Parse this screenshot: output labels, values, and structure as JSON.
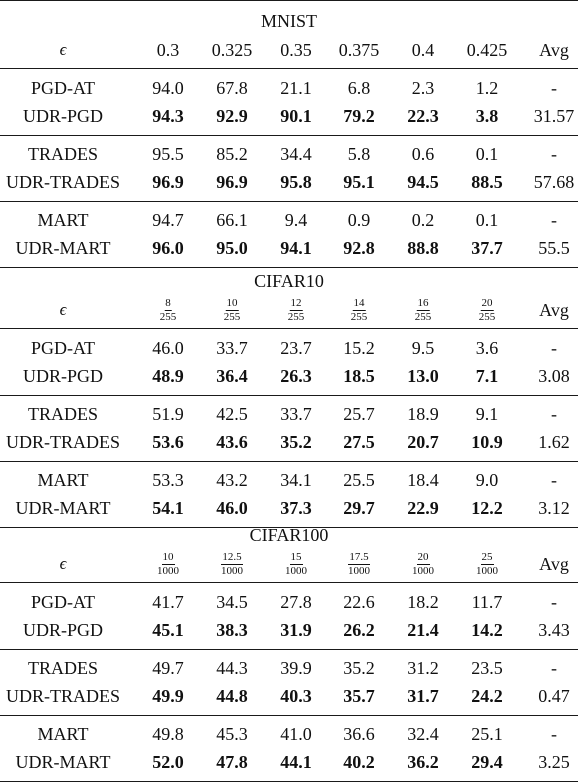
{
  "datasets": [
    {
      "name": "MNIST",
      "epsilon_symbol": "ϵ",
      "epsilon_format": "plain",
      "epsilons": [
        "0.3",
        "0.325",
        "0.35",
        "0.375",
        "0.4",
        "0.425"
      ],
      "avg_header": "Avg",
      "groups": [
        {
          "rows": [
            {
              "method": "PGD-AT",
              "bold": false,
              "values": [
                "94.0",
                "67.8",
                "21.1",
                "6.8",
                "2.3",
                "1.2"
              ],
              "avg": "-"
            },
            {
              "method": "UDR-PGD",
              "bold": true,
              "values": [
                "94.3",
                "92.9",
                "90.1",
                "79.2",
                "22.3",
                "3.8"
              ],
              "avg": "31.57"
            }
          ]
        },
        {
          "rows": [
            {
              "method": "TRADES",
              "bold": false,
              "values": [
                "95.5",
                "85.2",
                "34.4",
                "5.8",
                "0.6",
                "0.1"
              ],
              "avg": "-"
            },
            {
              "method": "UDR-TRADES",
              "bold": true,
              "values": [
                "96.9",
                "96.9",
                "95.8",
                "95.1",
                "94.5",
                "88.5"
              ],
              "avg": "57.68"
            }
          ]
        },
        {
          "rows": [
            {
              "method": "MART",
              "bold": false,
              "values": [
                "94.7",
                "66.1",
                "9.4",
                "0.9",
                "0.2",
                "0.1"
              ],
              "avg": "-"
            },
            {
              "method": "UDR-MART",
              "bold": true,
              "values": [
                "96.0",
                "95.0",
                "94.1",
                "92.8",
                "88.8",
                "37.7"
              ],
              "avg": "55.5"
            }
          ]
        }
      ]
    },
    {
      "name": "CIFAR10",
      "epsilon_symbol": "ϵ",
      "epsilon_format": "fraction",
      "epsilons": [
        {
          "num": "8",
          "den": "255"
        },
        {
          "num": "10",
          "den": "255"
        },
        {
          "num": "12",
          "den": "255"
        },
        {
          "num": "14",
          "den": "255"
        },
        {
          "num": "16",
          "den": "255"
        },
        {
          "num": "20",
          "den": "255"
        }
      ],
      "avg_header": "Avg",
      "groups": [
        {
          "rows": [
            {
              "method": "PGD-AT",
              "bold": false,
              "values": [
                "46.0",
                "33.7",
                "23.7",
                "15.2",
                "9.5",
                "3.6"
              ],
              "avg": "-"
            },
            {
              "method": "UDR-PGD",
              "bold": true,
              "values": [
                "48.9",
                "36.4",
                "26.3",
                "18.5",
                "13.0",
                "7.1"
              ],
              "avg": "3.08"
            }
          ]
        },
        {
          "rows": [
            {
              "method": "TRADES",
              "bold": false,
              "values": [
                "51.9",
                "42.5",
                "33.7",
                "25.7",
                "18.9",
                "9.1"
              ],
              "avg": "-"
            },
            {
              "method": "UDR-TRADES",
              "bold": true,
              "values": [
                "53.6",
                "43.6",
                "35.2",
                "27.5",
                "20.7",
                "10.9"
              ],
              "avg": "1.62"
            }
          ]
        },
        {
          "rows": [
            {
              "method": "MART",
              "bold": false,
              "values": [
                "53.3",
                "43.2",
                "34.1",
                "25.5",
                "18.4",
                "9.0"
              ],
              "avg": "-"
            },
            {
              "method": "UDR-MART",
              "bold": true,
              "values": [
                "54.1",
                "46.0",
                "37.3",
                "29.7",
                "22.9",
                "12.2"
              ],
              "avg": "3.12"
            }
          ]
        }
      ]
    },
    {
      "name": "CIFAR100",
      "epsilon_symbol": "ϵ",
      "epsilon_format": "fraction",
      "epsilons": [
        {
          "num": "10",
          "den": "1000"
        },
        {
          "num": "12.5",
          "den": "1000"
        },
        {
          "num": "15",
          "den": "1000"
        },
        {
          "num": "17.5",
          "den": "1000"
        },
        {
          "num": "20",
          "den": "1000"
        },
        {
          "num": "25",
          "den": "1000"
        }
      ],
      "avg_header": "Avg",
      "groups": [
        {
          "rows": [
            {
              "method": "PGD-AT",
              "bold": false,
              "values": [
                "41.7",
                "34.5",
                "27.8",
                "22.6",
                "18.2",
                "11.7"
              ],
              "avg": "-"
            },
            {
              "method": "UDR-PGD",
              "bold": true,
              "values": [
                "45.1",
                "38.3",
                "31.9",
                "26.2",
                "21.4",
                "14.2"
              ],
              "avg": "3.43"
            }
          ]
        },
        {
          "rows": [
            {
              "method": "TRADES",
              "bold": false,
              "values": [
                "49.7",
                "44.3",
                "39.9",
                "35.2",
                "31.2",
                "23.5"
              ],
              "avg": "-"
            },
            {
              "method": "UDR-TRADES",
              "bold": true,
              "values": [
                "49.9",
                "44.8",
                "40.3",
                "35.7",
                "31.7",
                "24.2"
              ],
              "avg": "0.47"
            }
          ]
        },
        {
          "rows": [
            {
              "method": "MART",
              "bold": false,
              "values": [
                "49.8",
                "45.3",
                "41.0",
                "36.6",
                "32.4",
                "25.1"
              ],
              "avg": "-"
            },
            {
              "method": "UDR-MART",
              "bold": true,
              "values": [
                "52.0",
                "47.8",
                "44.1",
                "40.2",
                "36.2",
                "29.4"
              ],
              "avg": "3.25"
            }
          ]
        }
      ]
    }
  ]
}
